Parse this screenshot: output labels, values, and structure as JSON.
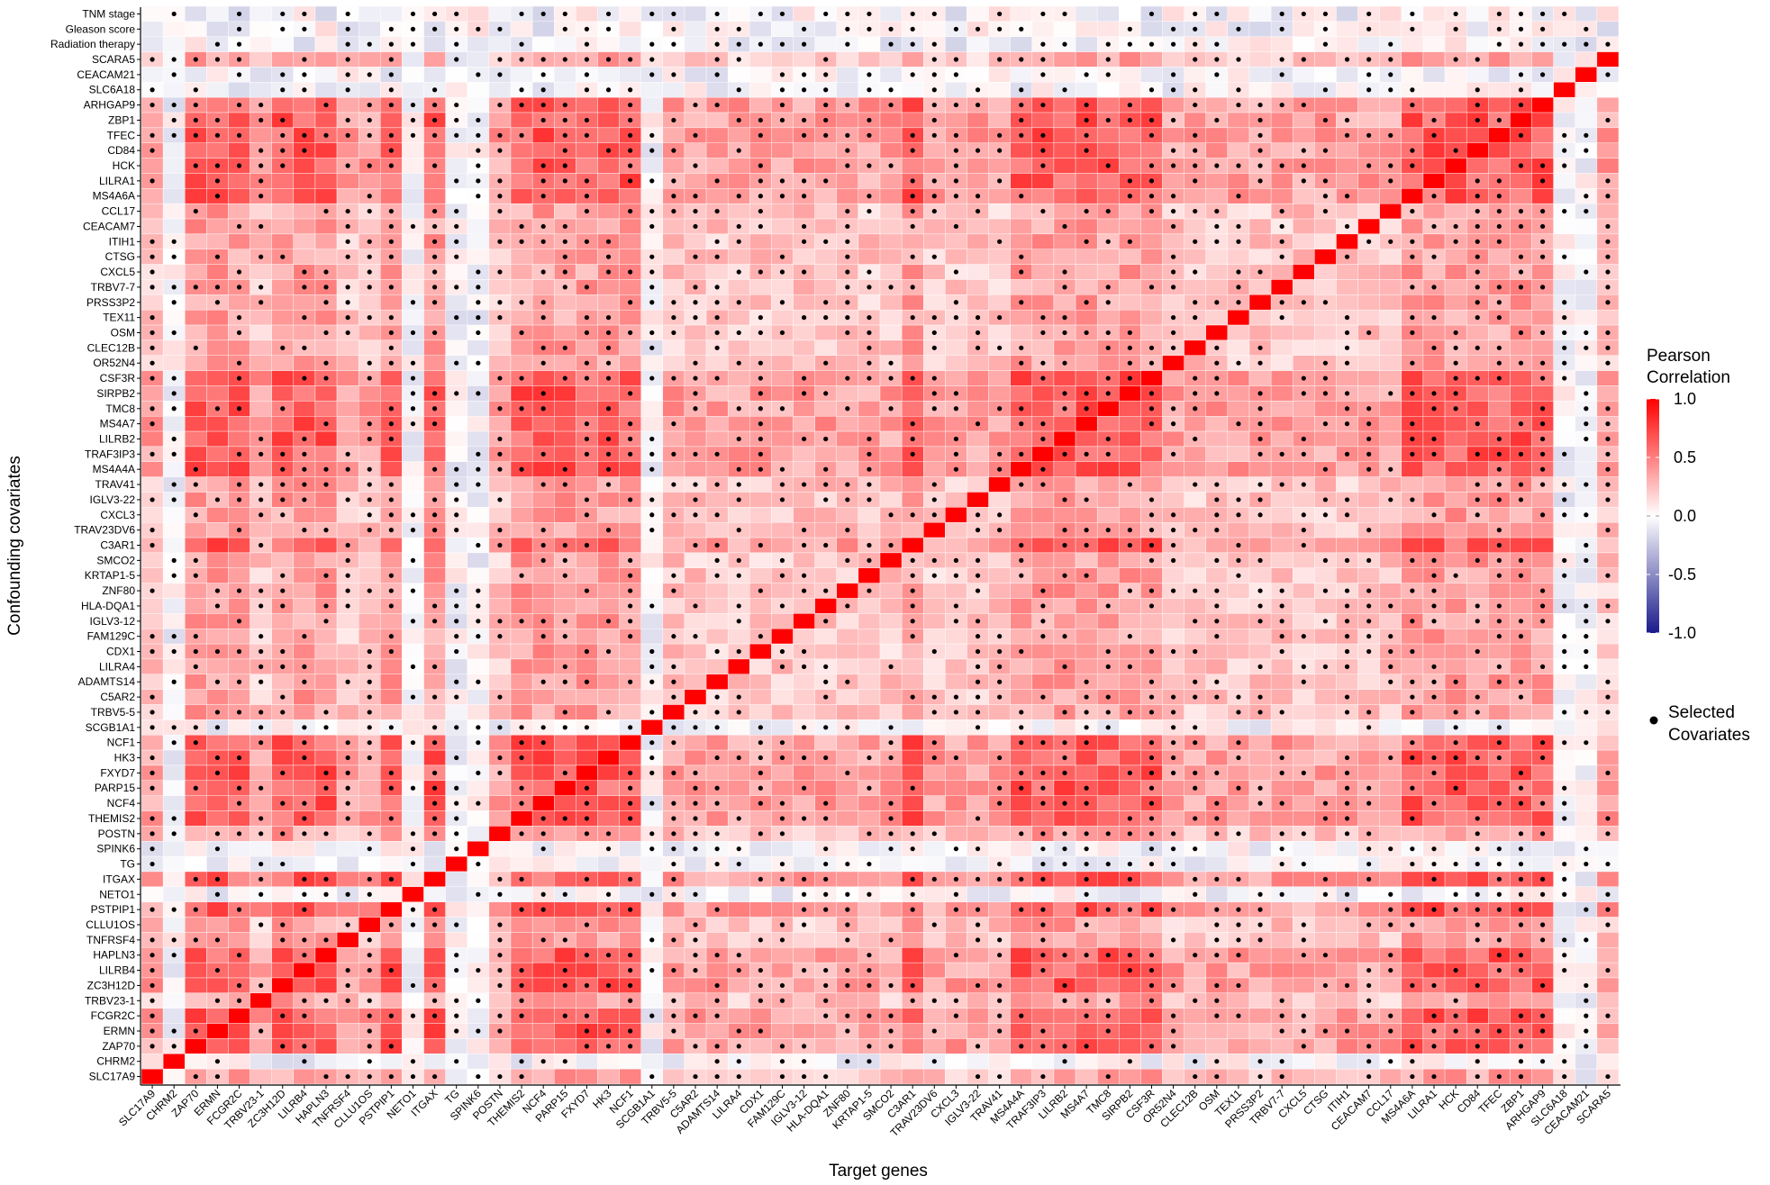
{
  "chart_data": {
    "type": "heatmap",
    "xlabel": "Target genes",
    "ylabel": "Confounding covariates",
    "x_categories": [
      "SLC17A9",
      "CHRM2",
      "ZAP70",
      "ERMN",
      "FCGR2C",
      "TRBV23-1",
      "ZC3H12D",
      "LILRB4",
      "HAPLN3",
      "TNFRSF4",
      "CLLU1OS",
      "PSTPIP1",
      "NETO1",
      "ITGAX",
      "TG",
      "SPINK6",
      "POSTN",
      "THEMIS2",
      "NCF4",
      "PARP15",
      "FXYD7",
      "HK3",
      "NCF1",
      "SCGB1A1",
      "TRBV5-5",
      "C5AR2",
      "ADAMTS14",
      "LILRA4",
      "CDX1",
      "FAM129C",
      "IGLV3-12",
      "HLA-DQA1",
      "ZNF80",
      "KRTAP1-5",
      "SMCO2",
      "C3AR1",
      "TRAV23DV6",
      "CXCL3",
      "IGLV3-22",
      "TRAV41",
      "MS4A4A",
      "TRAF3IP3",
      "LILRB2",
      "MS4A7",
      "TMC8",
      "SIRPB2",
      "CSF3R",
      "OR52N4",
      "CLEC12B",
      "OSM",
      "TEX11",
      "PRSS3P2",
      "TRBV7-7",
      "CXCL5",
      "CTSG",
      "ITIH1",
      "CEACAM7",
      "CCL17",
      "MS4A6A",
      "LILRA1",
      "HCK",
      "CD84",
      "TFEC",
      "ZBP1",
      "ARHGAP9",
      "SLC6A18",
      "CEACAM21",
      "SCARA5"
    ],
    "y_categories_top_to_bottom": [
      "TNM stage",
      "Gleason score",
      "Radiation therapy",
      "SCARA5",
      "CEACAM21",
      "SLC6A18",
      "ARHGAP9",
      "ZBP1",
      "TFEC",
      "CD84",
      "HCK",
      "LILRA1",
      "MS4A6A",
      "CCL17",
      "CEACAM7",
      "ITIH1",
      "CTSG",
      "CXCL5",
      "TRBV7-7",
      "PRSS3P2",
      "TEX11",
      "OSM",
      "CLEC12B",
      "OR52N4",
      "CSF3R",
      "SIRPB2",
      "TMC8",
      "MS4A7",
      "LILRB2",
      "TRAF3IP3",
      "MS4A4A",
      "TRAV41",
      "IGLV3-22",
      "CXCL3",
      "TRAV23DV6",
      "C3AR1",
      "SMCO2",
      "KRTAP1-5",
      "ZNF80",
      "HLA-DQA1",
      "IGLV3-12",
      "FAM129C",
      "CDX1",
      "LILRA4",
      "ADAMTS14",
      "C5AR2",
      "TRBV5-5",
      "SCGB1A1",
      "NCF1",
      "HK3",
      "FXYD7",
      "PARP15",
      "NCF4",
      "THEMIS2",
      "POSTN",
      "SPINK6",
      "TG",
      "ITGAX",
      "NETO1",
      "PSTPIP1",
      "CLLU1OS",
      "TNFRSF4",
      "HAPLN3",
      "LILRB4",
      "ZC3H12D",
      "TRBV23-1",
      "FCGR2C",
      "ERMN",
      "ZAP70",
      "CHRM2",
      "SLC17A9"
    ],
    "value_range": [
      -1.0,
      1.0
    ],
    "color_scale": {
      "low": "#1a1a8c",
      "mid": "#ffffff",
      "high": "#ff0000"
    },
    "diagonal_value": 1.0,
    "dot_meaning": "Selected Covariates",
    "immune_cluster_genes": [
      "ZAP70",
      "ERMN",
      "FCGR2C",
      "ZC3H12D",
      "LILRB4",
      "HAPLN3",
      "PSTPIP1",
      "ITGAX",
      "THEMIS2",
      "NCF4",
      "PARP15",
      "FXYD7",
      "HK3",
      "NCF1",
      "C3AR1",
      "MS4A4A",
      "TRAF3IP3",
      "LILRB2",
      "MS4A7",
      "TMC8",
      "SIRPB2",
      "CSF3R",
      "MS4A6A",
      "LILRA1",
      "HCK",
      "CD84",
      "TFEC",
      "ZBP1",
      "ARHGAP9"
    ],
    "near_zero_genes": [
      "CHRM2",
      "NETO1",
      "TG",
      "SPINK6",
      "SCGB1A1",
      "SLC6A18",
      "CEACAM21"
    ]
  },
  "legend": {
    "title_line1": "Pearson",
    "title_line2": "Correlation",
    "ticks": [
      "1.0",
      "0.5",
      "0.0",
      "-0.5",
      "-1.0"
    ],
    "dot_label_line1": "Selected",
    "dot_label_line2": "Covariates"
  }
}
